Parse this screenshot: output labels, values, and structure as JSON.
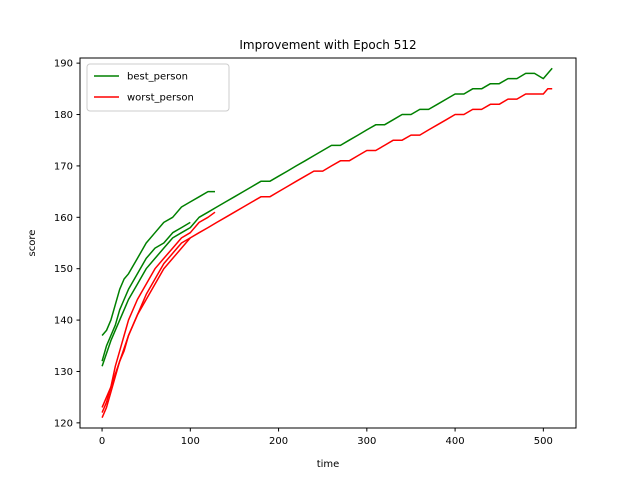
{
  "chart_data": {
    "type": "line",
    "title": "Improvement with Epoch 512",
    "xlabel": "time",
    "ylabel": "score",
    "xlim": [
      -25,
      537
    ],
    "ylim": [
      119,
      191
    ],
    "xticks": [
      0,
      100,
      200,
      300,
      400,
      500
    ],
    "yticks": [
      120,
      130,
      140,
      150,
      160,
      170,
      180,
      190
    ],
    "grid": false,
    "legend_position": "top-left",
    "series": [
      {
        "name": "best_person",
        "color": "#008000",
        "segments": [
          {
            "x": [
              0,
              5,
              10,
              15,
              20,
              25,
              30,
              40,
              50,
              60,
              70,
              80,
              90,
              100,
              110,
              120,
              128
            ],
            "y": [
              137,
              138,
              140,
              143,
              146,
              148,
              149,
              152,
              155,
              157,
              159,
              160,
              162,
              163,
              164,
              165,
              165
            ]
          },
          {
            "x": [
              0,
              5,
              10,
              15,
              20,
              25,
              30,
              40,
              50,
              60,
              70,
              80,
              90,
              100
            ],
            "y": [
              132,
              135,
              137,
              139,
              142,
              144,
              146,
              149,
              152,
              154,
              155,
              157,
              158,
              159
            ]
          },
          {
            "x": [
              0,
              10,
              20,
              30,
              40,
              50,
              60,
              70,
              80,
              90,
              100,
              110,
              120,
              130,
              140,
              150,
              160,
              170,
              180,
              190,
              200,
              210,
              220,
              230,
              240,
              250,
              260,
              270,
              280,
              290,
              300,
              310,
              320,
              330,
              340,
              350,
              360,
              370,
              380,
              390,
              400,
              410,
              420,
              430,
              440,
              450,
              460,
              470,
              480,
              490,
              500,
              505,
              510
            ],
            "y": [
              131,
              136,
              140,
              144,
              147,
              150,
              152,
              154,
              156,
              157,
              158,
              160,
              161,
              162,
              163,
              164,
              165,
              166,
              167,
              167,
              168,
              169,
              170,
              171,
              172,
              173,
              174,
              174,
              175,
              176,
              177,
              178,
              178,
              179,
              180,
              180,
              181,
              181,
              182,
              183,
              184,
              184,
              185,
              185,
              186,
              186,
              187,
              187,
              188,
              188,
              187,
              188,
              189
            ]
          }
        ]
      },
      {
        "name": "worst_person",
        "color": "#ff0000",
        "segments": [
          {
            "x": [
              0,
              5,
              10,
              15,
              20,
              25,
              30,
              40,
              50,
              60,
              70,
              80,
              90,
              100,
              110,
              120,
              128
            ],
            "y": [
              122,
              124,
              127,
              131,
              134,
              137,
              140,
              144,
              147,
              150,
              152,
              154,
              156,
              157,
              159,
              160,
              161
            ]
          },
          {
            "x": [
              0,
              5,
              10,
              15,
              20,
              25,
              30,
              40,
              50,
              60,
              70,
              80,
              90,
              100
            ],
            "y": [
              121,
              123,
              126,
              129,
              132,
              134,
              137,
              141,
              145,
              148,
              151,
              153,
              155,
              156
            ]
          },
          {
            "x": [
              0,
              10,
              20,
              30,
              40,
              50,
              60,
              70,
              80,
              90,
              100,
              110,
              120,
              130,
              140,
              150,
              160,
              170,
              180,
              190,
              200,
              210,
              220,
              230,
              240,
              250,
              260,
              270,
              280,
              290,
              300,
              310,
              320,
              330,
              340,
              350,
              360,
              370,
              380,
              390,
              400,
              410,
              420,
              430,
              440,
              450,
              460,
              470,
              480,
              490,
              500,
              505,
              510
            ],
            "y": [
              123,
              127,
              132,
              137,
              141,
              144,
              147,
              150,
              152,
              154,
              156,
              157,
              158,
              159,
              160,
              161,
              162,
              163,
              164,
              164,
              165,
              166,
              167,
              168,
              169,
              169,
              170,
              171,
              171,
              172,
              173,
              173,
              174,
              175,
              175,
              176,
              176,
              177,
              178,
              179,
              180,
              180,
              181,
              181,
              182,
              182,
              183,
              183,
              184,
              184,
              184,
              185,
              185
            ]
          }
        ]
      }
    ]
  }
}
